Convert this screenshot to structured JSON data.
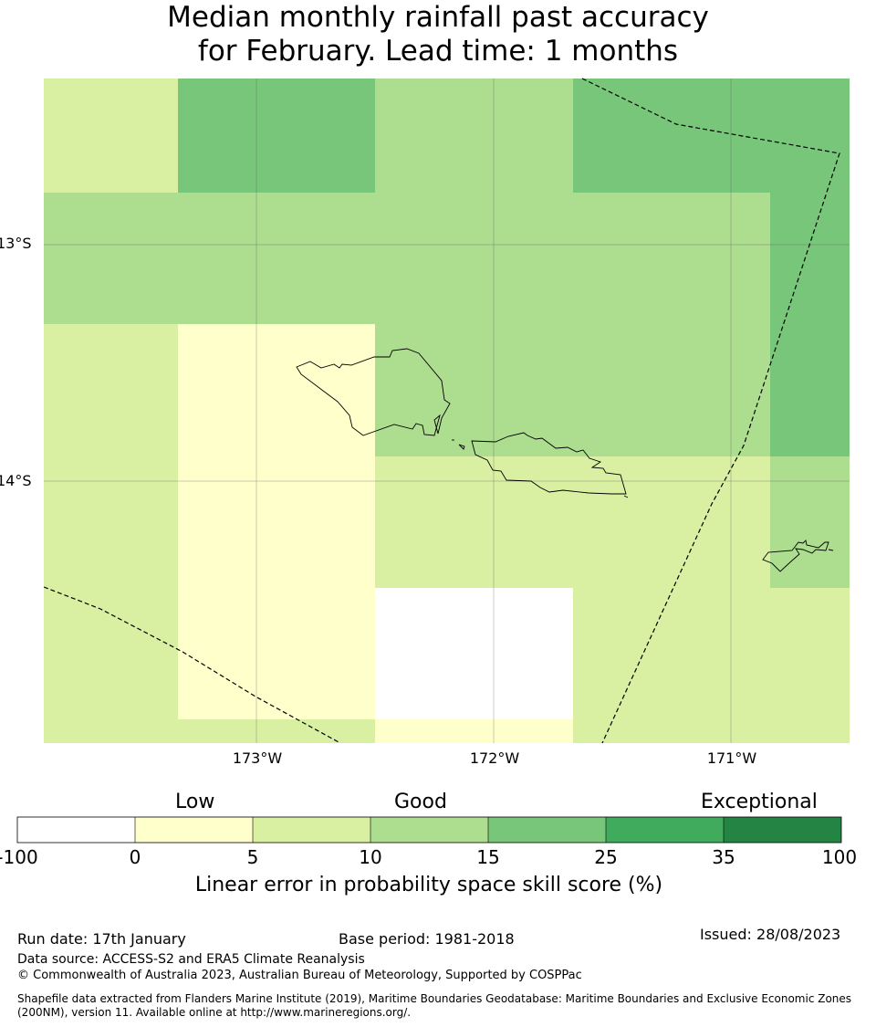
{
  "title": {
    "line1": "Median monthly rainfall past accuracy",
    "line2": "for February. Lead time: 1 months"
  },
  "map": {
    "lat_labels": [
      "13°S",
      "14°S"
    ],
    "lon_labels": [
      "173°W",
      "172°W",
      "171°W"
    ],
    "ocean_color": "#ffffff",
    "coastline_color": "#000000",
    "eez_boundary_style": "dashed"
  },
  "colorbar": {
    "categories": [
      "Low",
      "Good",
      "Exceptional"
    ],
    "ticks": [
      "-100",
      "0",
      "5",
      "10",
      "15",
      "25",
      "35",
      "100"
    ],
    "colors": [
      "#ffffff",
      "#ffffcc",
      "#d9f0a3",
      "#addd8e",
      "#78c679",
      "#41ab5d",
      "#238443"
    ],
    "label": "Linear error in probability space skill score (%)"
  },
  "footer": {
    "run_date": "Run date: 17th January",
    "base_period": "Base period: 1981-2018",
    "issued": "Issued: 28/08/2023",
    "data_source": "Data source: ACCESS-S2 and ERA5 Climate Reanalysis",
    "copyright": "© Commonwealth of Australia 2023, Australian Bureau of Meteorology, Supported by COSPPac",
    "shapefile_note": "Shapefile data extracted from Flanders Marine Institute (2019), Maritime Boundaries Geodatabase: Maritime Boundaries and Exclusive Economic Zones (200NM), version 11. Available online at http://www.marineregions.org/."
  }
}
